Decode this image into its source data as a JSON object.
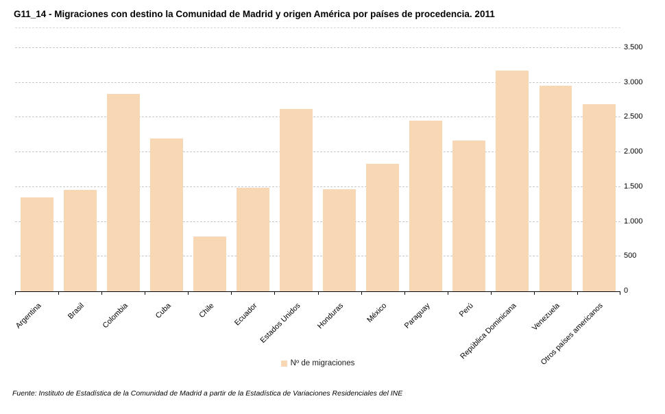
{
  "title": "G11_14 - Migraciones con destino la Comunidad de Madrid y origen América por países de procedencia. 2011",
  "source_note": "Fuente: Instituto de Estadística de la Comunidad de Madrid a partir de la Estadística de Variaciones Residenciales del INE",
  "legend": {
    "label": "Nº de migraciones",
    "swatch_color": "#f8d7b4"
  },
  "colors": {
    "bar": "#f8d7b4",
    "gridline": "#c7c7c7",
    "axis": "#000000"
  },
  "chart_data": {
    "type": "bar",
    "title": "G11_14 - Migraciones con destino la Comunidad de Madrid y origen América por países de procedencia. 2011",
    "categories": [
      "Argentina",
      "Brasil",
      "Colombia",
      "Cuba",
      "Chile",
      "Ecuador",
      "Estados Unidos",
      "Honduras",
      "México",
      "Paraguay",
      "Perú",
      "República Dominicana",
      "Venezuela",
      "Otros países americanos"
    ],
    "values": [
      1350,
      1460,
      2840,
      2200,
      790,
      1490,
      2620,
      1470,
      1830,
      2450,
      2170,
      3170,
      2960,
      2690
    ],
    "series_name": "Nº de migraciones",
    "xlabel": "",
    "ylabel": "",
    "ylim": [
      0,
      3500
    ],
    "ytick_step": 500,
    "ytick_labels": [
      "0",
      "500",
      "1.000",
      "1.500",
      "2.000",
      "2.500",
      "3.000",
      "3.500"
    ],
    "grid": "horizontal-dashed",
    "legend_position": "bottom-center",
    "yaxis_side": "right"
  }
}
